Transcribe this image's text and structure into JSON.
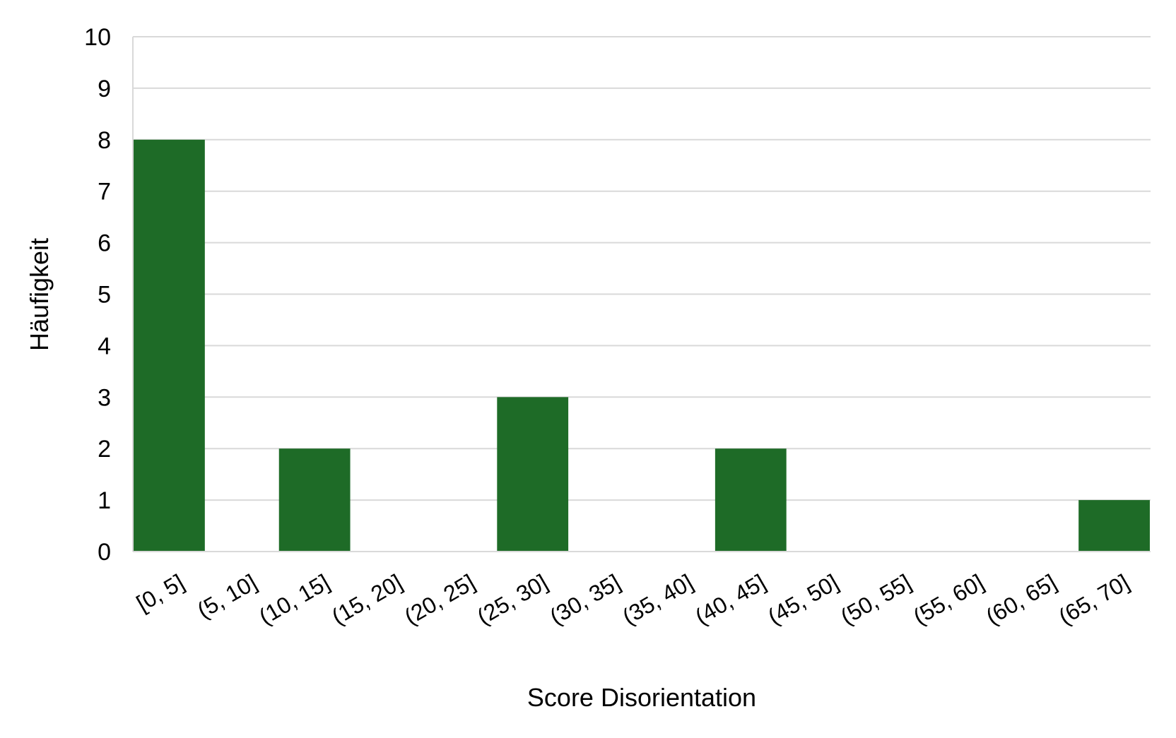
{
  "chart_data": {
    "type": "bar",
    "title": "",
    "xlabel": "Score Disorientation",
    "ylabel": "Häufigkeit",
    "categories": [
      "[0, 5]",
      "(5, 10]",
      "(10, 15]",
      "(15, 20]",
      "(20, 25]",
      "(25, 30]",
      "(30, 35]",
      "(35, 40]",
      "(40, 45]",
      "(45, 50]",
      "(50, 55]",
      "(55, 60]",
      "(60, 65]",
      "(65, 70]"
    ],
    "values": [
      8,
      0,
      2,
      0,
      0,
      3,
      0,
      0,
      2,
      0,
      0,
      0,
      0,
      1
    ],
    "ylim": [
      0,
      10
    ],
    "yticks": [
      "0",
      "1",
      "2",
      "3",
      "4",
      "5",
      "6",
      "7",
      "8",
      "9",
      "10"
    ],
    "grid": true,
    "legend": "none",
    "colors": {
      "bar": "#1e6b27",
      "grid": "#d9d9d9"
    }
  }
}
